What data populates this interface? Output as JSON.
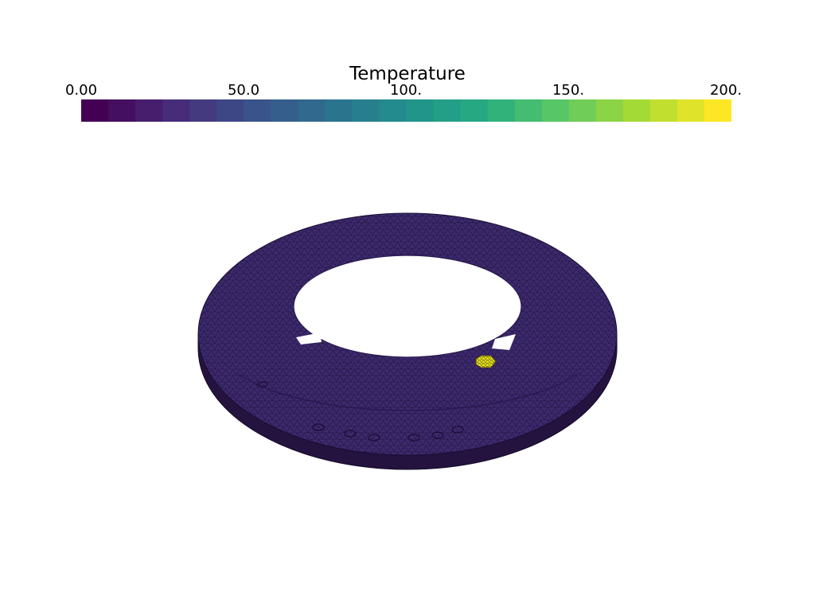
{
  "colorbar": {
    "title": "Temperature",
    "min": 0,
    "max": 200,
    "ticks": [
      {
        "value": 0,
        "label": "0.00"
      },
      {
        "value": 50,
        "label": "50.0"
      },
      {
        "value": 100,
        "label": "100."
      },
      {
        "value": 150,
        "label": "150."
      },
      {
        "value": 200,
        "label": "200."
      }
    ],
    "colormap": "viridis",
    "bands": 24
  },
  "scene": {
    "object": "annular-disk-mesh",
    "surface_value": 0,
    "hotspot_value": 200,
    "mesh_color": "#3b1f66",
    "edge_color": "#1a0d33",
    "hotspot_color": "#e6e01a",
    "background": "#ffffff"
  }
}
